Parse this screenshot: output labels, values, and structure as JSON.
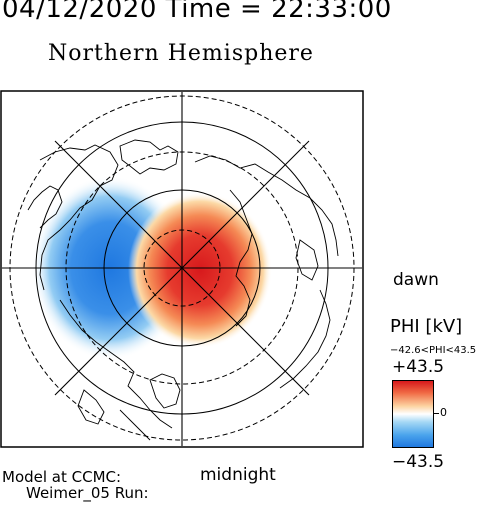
{
  "header": {
    "datetime": "04/12/2020 Time = 22:33:00",
    "title": "Northern Hemisphere"
  },
  "map": {
    "hemisphere": "north",
    "projection": "polar",
    "orientation": {
      "bottom": "midnight",
      "right": "dawn"
    },
    "latitude_circles": "dashed",
    "meridians": "solid radial lines",
    "features": [
      {
        "name": "positive potential cell",
        "sign": "+",
        "color": "#d7191c",
        "region": "dawn / post-midnight sector"
      },
      {
        "name": "negative potential cell",
        "sign": "-",
        "color": "#1f78e0",
        "region": "dusk / pre-noon sector"
      }
    ],
    "labels": {
      "dawn": "dawn",
      "midnight": "midnight"
    }
  },
  "legend": {
    "title": "PHI [kV]",
    "range_text": "−42.6<PHI<43.5",
    "max": "+43.5",
    "zero": "0",
    "min": "−43.5",
    "colors": {
      "positive": "#d7191c",
      "zero": "#ffffff",
      "negative": "#1f78e0"
    }
  },
  "footer": {
    "model": "Model at CCMC:",
    "run": "Weimer_05 Run:"
  }
}
